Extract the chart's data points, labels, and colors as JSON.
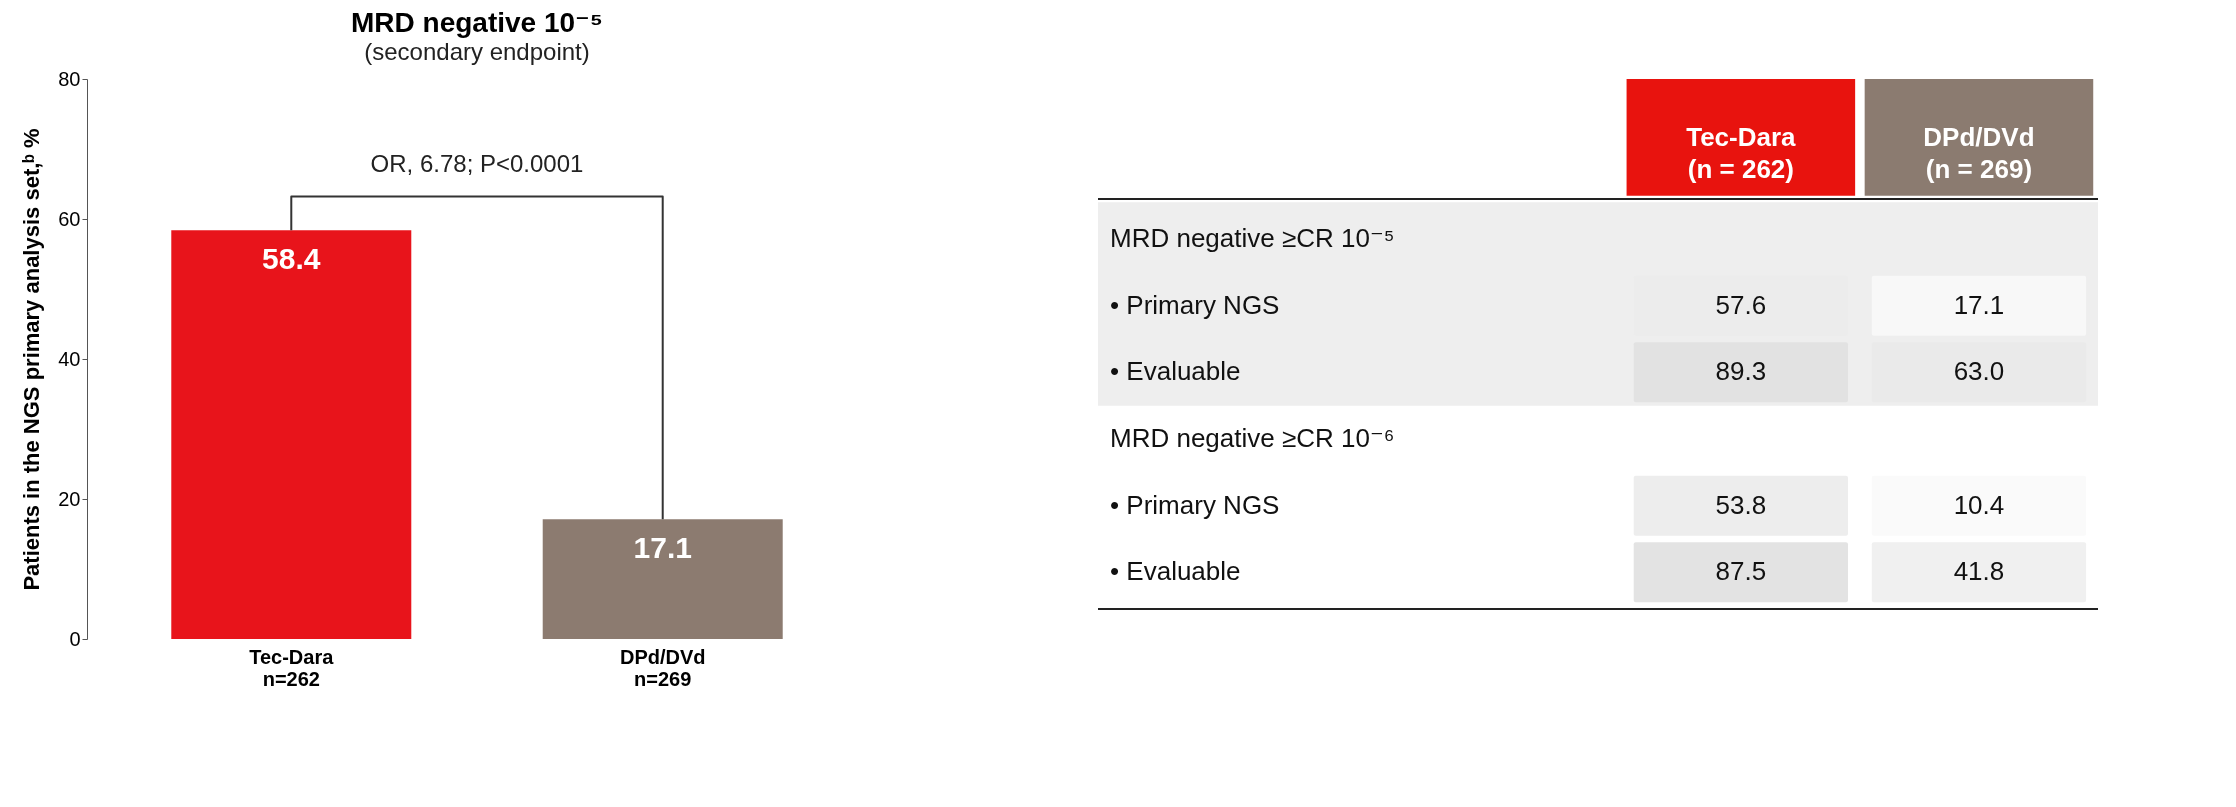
{
  "chart_data": [
    {
      "type": "bar",
      "title": "MRD negative 10⁻⁵",
      "subtitle": "(secondary endpoint)",
      "ylabel": "Patients in the NGS primary analysis set,ᵇ %",
      "categories": [
        "Tec-Dara\nn=262",
        "DPd/DVd\nn=269"
      ],
      "values": [
        58.4,
        17.1
      ],
      "colors": [
        "#e8141b",
        "#8c7b70"
      ],
      "ylim": [
        0,
        80
      ],
      "yticks": [
        0,
        20,
        40,
        60,
        80
      ],
      "data_labels": true,
      "grid": false,
      "annotations": [
        "OR, 6.78; P<0.0001"
      ]
    },
    {
      "type": "heatmap",
      "categories": [
        "Tec-Dara\n(n = 262)",
        "DPd/DVd\n(n = 269)"
      ],
      "colors": [
        "#e8130e",
        "#8b7b70"
      ],
      "y_categories": [
        "MRD negative ≥CR 10⁻⁵",
        "•   Primary NGS",
        "•   Evaluable",
        "MRD negative ≥CR 10⁻⁶",
        "•   Primary NGS",
        "•   Evaluable"
      ],
      "cells": [
        [
          null,
          null
        ],
        [
          57.6,
          17.1
        ],
        [
          89.3,
          63.0
        ],
        [
          null,
          null
        ],
        [
          53.8,
          10.4
        ],
        [
          87.5,
          41.8
        ]
      ],
      "cell_labels": [
        [
          null,
          null
        ],
        [
          "57.6",
          "17.1"
        ],
        [
          "89.3",
          "63.0"
        ],
        [
          null,
          null
        ],
        [
          "53.8",
          "10.4"
        ],
        [
          "87.5",
          "41.8"
        ]
      ],
      "data_labels": true
    }
  ]
}
